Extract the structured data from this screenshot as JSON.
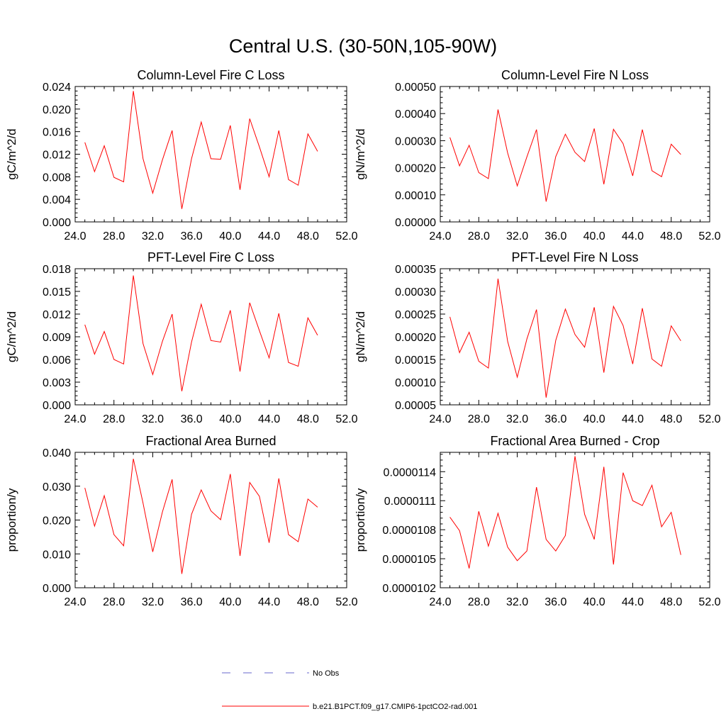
{
  "figure": {
    "title": "Central U.S. (30-50N,105-90W)"
  },
  "legend": {
    "entries": [
      {
        "label": "No Obs",
        "style": "dashed",
        "color": "#6a6acd"
      },
      {
        "label": "b.e21.B1PCT.f09_g17.CMIP6-1pctCO2-rad.001",
        "style": "solid",
        "color": "#ff0000"
      }
    ]
  },
  "chart_data": [
    {
      "type": "line",
      "title": "Column-Level Fire C Loss",
      "ylabel": "gC/m^2/d",
      "xlabel": "",
      "xlim": [
        24,
        52
      ],
      "ylim": [
        0,
        0.024
      ],
      "xticks": [
        "24.0",
        "28.0",
        "32.0",
        "36.0",
        "40.0",
        "44.0",
        "48.0",
        "52.0"
      ],
      "xtick_values": [
        24,
        28,
        32,
        36,
        40,
        44,
        48,
        52
      ],
      "yticks": [
        "0.000",
        "0.004",
        "0.008",
        "0.012",
        "0.016",
        "0.020",
        "0.024"
      ],
      "ytick_values": [
        0,
        0.004,
        0.008,
        0.012,
        0.016,
        0.02,
        0.024
      ],
      "x": [
        25,
        26,
        27,
        28,
        29,
        30,
        31,
        32,
        33,
        34,
        35,
        36,
        37,
        38,
        39,
        40,
        41,
        42,
        43,
        44,
        45,
        46,
        47,
        48,
        49
      ],
      "series": [
        {
          "name": "b.e21.B1PCT.f09_g17.CMIP6-1pctCO2-rad.001",
          "color": "#ff0000",
          "values": [
            0.0141,
            0.0089,
            0.0135,
            0.0079,
            0.0071,
            0.0232,
            0.0112,
            0.0051,
            0.011,
            0.0162,
            0.0023,
            0.0112,
            0.0177,
            0.0112,
            0.0111,
            0.0171,
            0.0057,
            0.0183,
            0.0133,
            0.008,
            0.0162,
            0.0075,
            0.0065,
            0.0156,
            0.0125
          ]
        }
      ]
    },
    {
      "type": "line",
      "title": "Column-Level Fire N Loss",
      "ylabel": "gN/m^2/d",
      "xlabel": "",
      "xlim": [
        24,
        52
      ],
      "ylim": [
        0,
        0.0005
      ],
      "xticks": [
        "24.0",
        "28.0",
        "32.0",
        "36.0",
        "40.0",
        "44.0",
        "48.0",
        "52.0"
      ],
      "xtick_values": [
        24,
        28,
        32,
        36,
        40,
        44,
        48,
        52
      ],
      "yticks": [
        "0.00000",
        "0.00010",
        "0.00020",
        "0.00030",
        "0.00040",
        "0.00050"
      ],
      "ytick_values": [
        0,
        0.0001,
        0.0002,
        0.0003,
        0.0004,
        0.0005
      ],
      "x": [
        25,
        26,
        27,
        28,
        29,
        30,
        31,
        32,
        33,
        34,
        35,
        36,
        37,
        38,
        39,
        40,
        41,
        42,
        43,
        44,
        45,
        46,
        47,
        48,
        49
      ],
      "series": [
        {
          "name": "b.e21.B1PCT.f09_g17.CMIP6-1pctCO2-rad.001",
          "color": "#ff0000",
          "values": [
            0.000312,
            0.000207,
            0.000283,
            0.000182,
            0.00016,
            0.000415,
            0.000255,
            0.000133,
            0.00024,
            0.000341,
            7.5e-05,
            0.000241,
            0.000324,
            0.000257,
            0.000223,
            0.000345,
            0.000139,
            0.000342,
            0.000289,
            0.00017,
            0.000341,
            0.000189,
            0.000167,
            0.000287,
            0.000249
          ]
        }
      ]
    },
    {
      "type": "line",
      "title": "PFT-Level Fire C Loss",
      "ylabel": "gC/m^2/d",
      "xlabel": "",
      "xlim": [
        24,
        52
      ],
      "ylim": [
        0,
        0.018
      ],
      "xticks": [
        "24.0",
        "28.0",
        "32.0",
        "36.0",
        "40.0",
        "44.0",
        "48.0",
        "52.0"
      ],
      "xtick_values": [
        24,
        28,
        32,
        36,
        40,
        44,
        48,
        52
      ],
      "yticks": [
        "0.000",
        "0.003",
        "0.006",
        "0.009",
        "0.012",
        "0.015",
        "0.018"
      ],
      "ytick_values": [
        0,
        0.003,
        0.006,
        0.009,
        0.012,
        0.015,
        0.018
      ],
      "x": [
        25,
        26,
        27,
        28,
        29,
        30,
        31,
        32,
        33,
        34,
        35,
        36,
        37,
        38,
        39,
        40,
        41,
        42,
        43,
        44,
        45,
        46,
        47,
        48,
        49
      ],
      "series": [
        {
          "name": "b.e21.B1PCT.f09_g17.CMIP6-1pctCO2-rad.001",
          "color": "#ff0000",
          "values": [
            0.0106,
            0.0067,
            0.0097,
            0.006,
            0.0054,
            0.0171,
            0.0081,
            0.004,
            0.0084,
            0.012,
            0.0018,
            0.0083,
            0.0133,
            0.0085,
            0.0083,
            0.0125,
            0.0044,
            0.0135,
            0.0098,
            0.0062,
            0.0121,
            0.0056,
            0.0051,
            0.0115,
            0.0092
          ]
        }
      ]
    },
    {
      "type": "line",
      "title": "PFT-Level Fire N Loss",
      "ylabel": "gN/m^2/d",
      "xlabel": "",
      "xlim": [
        24,
        52
      ],
      "ylim": [
        5e-05,
        0.00035
      ],
      "xticks": [
        "24.0",
        "28.0",
        "32.0",
        "36.0",
        "40.0",
        "44.0",
        "48.0",
        "52.0"
      ],
      "xtick_values": [
        24,
        28,
        32,
        36,
        40,
        44,
        48,
        52
      ],
      "yticks": [
        "0.00005",
        "0.00010",
        "0.00015",
        "0.00020",
        "0.00025",
        "0.00030",
        "0.00035"
      ],
      "ytick_values": [
        5e-05,
        0.0001,
        0.00015,
        0.0002,
        0.00025,
        0.0003,
        0.00035
      ],
      "x": [
        25,
        26,
        27,
        28,
        29,
        30,
        31,
        32,
        33,
        34,
        35,
        36,
        37,
        38,
        39,
        40,
        41,
        42,
        43,
        44,
        45,
        46,
        47,
        48,
        49
      ],
      "series": [
        {
          "name": "b.e21.B1PCT.f09_g17.CMIP6-1pctCO2-rad.001",
          "color": "#ff0000",
          "values": [
            0.000244,
            0.000165,
            0.00021,
            0.000146,
            0.000131,
            0.000328,
            0.00019,
            0.000111,
            0.000195,
            0.00026,
            6.6e-05,
            0.000192,
            0.000261,
            0.000205,
            0.000177,
            0.000265,
            0.000121,
            0.000267,
            0.000225,
            0.00014,
            0.000263,
            0.000151,
            0.000135,
            0.000224,
            0.000191
          ]
        }
      ]
    },
    {
      "type": "line",
      "title": "Fractional Area Burned",
      "ylabel": "proportion/y",
      "xlabel": "",
      "xlim": [
        24,
        52
      ],
      "ylim": [
        0,
        0.04
      ],
      "xticks": [
        "24.0",
        "28.0",
        "32.0",
        "36.0",
        "40.0",
        "44.0",
        "48.0",
        "52.0"
      ],
      "xtick_values": [
        24,
        28,
        32,
        36,
        40,
        44,
        48,
        52
      ],
      "yticks": [
        "0.000",
        "0.010",
        "0.020",
        "0.030",
        "0.040"
      ],
      "ytick_values": [
        0,
        0.01,
        0.02,
        0.03,
        0.04
      ],
      "x": [
        25,
        26,
        27,
        28,
        29,
        30,
        31,
        32,
        33,
        34,
        35,
        36,
        37,
        38,
        39,
        40,
        41,
        42,
        43,
        44,
        45,
        46,
        47,
        48,
        49
      ],
      "series": [
        {
          "name": "b.e21.B1PCT.f09_g17.CMIP6-1pctCO2-rad.001",
          "color": "#ff0000",
          "values": [
            0.0295,
            0.0182,
            0.0272,
            0.0157,
            0.0124,
            0.0381,
            0.025,
            0.0106,
            0.0224,
            0.032,
            0.0041,
            0.0217,
            0.0289,
            0.0227,
            0.0201,
            0.0336,
            0.0094,
            0.0311,
            0.027,
            0.0133,
            0.0323,
            0.0157,
            0.0136,
            0.0262,
            0.0238
          ]
        }
      ]
    },
    {
      "type": "line",
      "title": "Fractional Area Burned - Crop",
      "ylabel": "proportion/y",
      "xlabel": "",
      "xlim": [
        24,
        52
      ],
      "ylim": [
        1.02e-05,
        1.16e-05
      ],
      "xticks": [
        "24.0",
        "28.0",
        "32.0",
        "36.0",
        "40.0",
        "44.0",
        "48.0",
        "52.0"
      ],
      "xtick_values": [
        24,
        28,
        32,
        36,
        40,
        44,
        48,
        52
      ],
      "yticks": [
        "0.0000102",
        "0.0000105",
        "0.0000108",
        "0.0000111",
        "0.0000114"
      ],
      "ytick_values": [
        1.02e-05,
        1.05e-05,
        1.08e-05,
        1.11e-05,
        1.14e-05
      ],
      "x": [
        25,
        26,
        27,
        28,
        29,
        30,
        31,
        32,
        33,
        34,
        35,
        36,
        37,
        38,
        39,
        40,
        41,
        42,
        43,
        44,
        45,
        46,
        47,
        48,
        49
      ],
      "series": [
        {
          "name": "b.e21.B1PCT.f09_g17.CMIP6-1pctCO2-rad.001",
          "color": "#ff0000",
          "values": [
            1.093e-05,
            1.079e-05,
            1.04e-05,
            1.099e-05,
            1.063e-05,
            1.097e-05,
            1.062e-05,
            1.048e-05,
            1.058e-05,
            1.124e-05,
            1.07e-05,
            1.058e-05,
            1.074e-05,
            1.156e-05,
            1.096e-05,
            1.07e-05,
            1.145e-05,
            1.044e-05,
            1.139e-05,
            1.11e-05,
            1.105e-05,
            1.126e-05,
            1.083e-05,
            1.098e-05,
            1.054e-05
          ]
        }
      ]
    }
  ]
}
